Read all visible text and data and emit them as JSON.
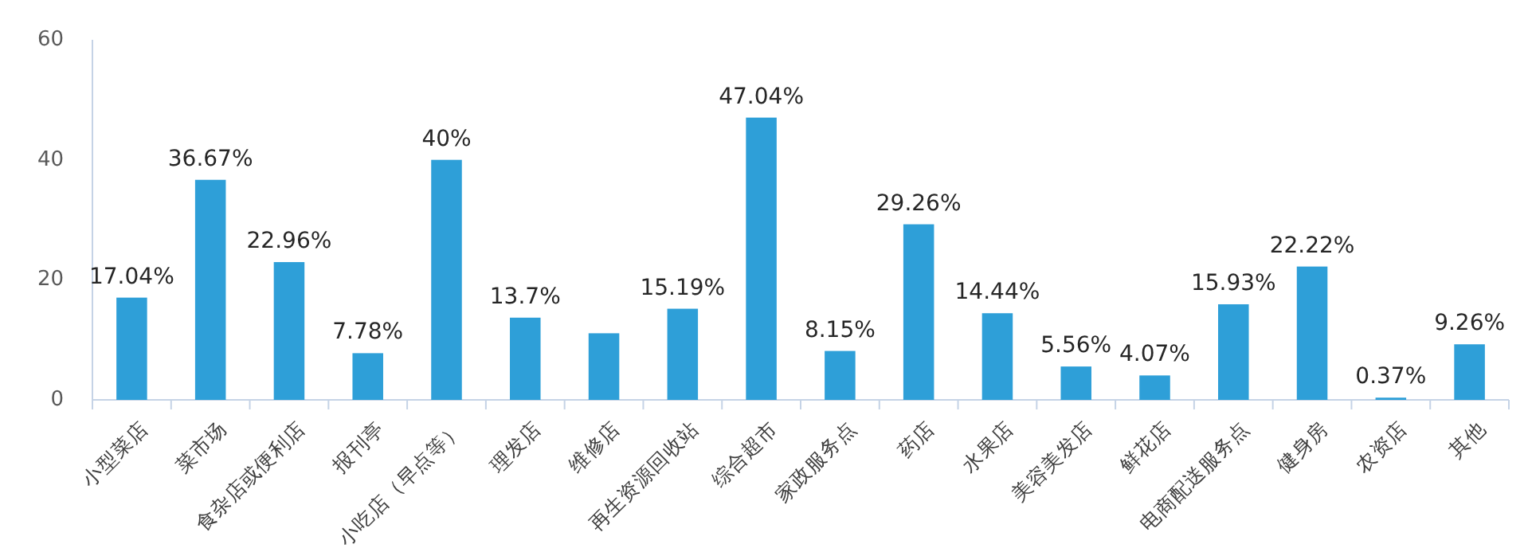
{
  "chart_data": {
    "type": "bar",
    "categories": [
      "小型菜店",
      "菜市场",
      "食杂店或便利店",
      "报刊亭",
      "小吃店（早点等）",
      "理发店",
      "维修店",
      "再生资源回收站",
      "综合超市",
      "家政服务点",
      "药店",
      "水果店",
      "美容美发店",
      "鲜花店",
      "电商配送服务点",
      "健身房",
      "农资店",
      "其他"
    ],
    "values": [
      17.04,
      36.67,
      22.96,
      7.78,
      40,
      13.7,
      11.1,
      15.19,
      47.04,
      8.15,
      29.26,
      14.44,
      5.56,
      4.07,
      15.93,
      22.22,
      0.37,
      9.26
    ],
    "value_labels": [
      "17.04%",
      "36.67%",
      "22.96%",
      "7.78%",
      "40%",
      "13.7%",
      null,
      "15.19%",
      "47.04%",
      "8.15%",
      "29.26%",
      "14.44%",
      "5.56%",
      "4.07%",
      "15.93%",
      "22.22%",
      "0.37%",
      "9.26%"
    ],
    "color": "#2e9fd8",
    "ylim": [
      0,
      60
    ],
    "yticks": [
      0,
      20,
      40,
      60
    ],
    "grid": false
  }
}
